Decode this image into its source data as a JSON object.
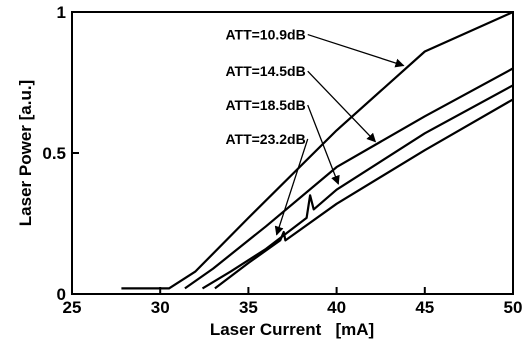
{
  "chart_data": {
    "type": "line",
    "title": "",
    "xlabel": "Laser Current   [mA]",
    "ylabel": "Laser Power [a.u.]",
    "xlim": [
      25,
      50
    ],
    "ylim": [
      0,
      1
    ],
    "xticks": [
      25,
      30,
      35,
      40,
      45,
      50
    ],
    "yticks": [
      {
        "value": 0,
        "label": "0"
      },
      {
        "value": 0.5,
        "label": "0.5"
      },
      {
        "value": 1,
        "label": "1"
      }
    ],
    "grid": false,
    "legend": "none",
    "series": [
      {
        "label": "ATT=10.9dB",
        "points": [
          [
            27.8,
            0.02
          ],
          [
            30.5,
            0.02
          ],
          [
            32.0,
            0.08
          ],
          [
            35.0,
            0.27
          ],
          [
            40.0,
            0.58
          ],
          [
            45.0,
            0.86
          ],
          [
            50.0,
            1.0
          ]
        ],
        "annotation": {
          "text_at": [
            33.7,
            0.92
          ],
          "arrow_to": [
            43.8,
            0.81
          ]
        }
      },
      {
        "label": "ATT=14.5dB",
        "points": [
          [
            31.4,
            0.02
          ],
          [
            33.0,
            0.09
          ],
          [
            36.0,
            0.24
          ],
          [
            40.0,
            0.45
          ],
          [
            45.0,
            0.63
          ],
          [
            50.0,
            0.8
          ]
        ],
        "annotation": {
          "text_at": [
            33.7,
            0.79
          ],
          "arrow_to": [
            42.2,
            0.54
          ]
        }
      },
      {
        "label": "ATT=18.5dB",
        "points": [
          [
            32.4,
            0.02
          ],
          [
            34.0,
            0.08
          ],
          [
            36.0,
            0.16
          ],
          [
            38.3,
            0.27
          ],
          [
            38.5,
            0.35
          ],
          [
            38.7,
            0.3
          ],
          [
            40.0,
            0.37
          ],
          [
            45.0,
            0.57
          ],
          [
            50.0,
            0.74
          ]
        ],
        "annotation": {
          "text_at": [
            33.7,
            0.67
          ],
          "arrow_to": [
            40.1,
            0.39
          ]
        }
      },
      {
        "label": "ATT=23.2dB",
        "points": [
          [
            33.1,
            0.02
          ],
          [
            35.0,
            0.11
          ],
          [
            36.8,
            0.19
          ],
          [
            37.0,
            0.22
          ],
          [
            37.1,
            0.19
          ],
          [
            40.0,
            0.32
          ],
          [
            45.0,
            0.51
          ],
          [
            50.0,
            0.69
          ]
        ],
        "annotation": {
          "text_at": [
            33.7,
            0.55
          ],
          "arrow_to": [
            36.6,
            0.21
          ]
        }
      }
    ]
  }
}
